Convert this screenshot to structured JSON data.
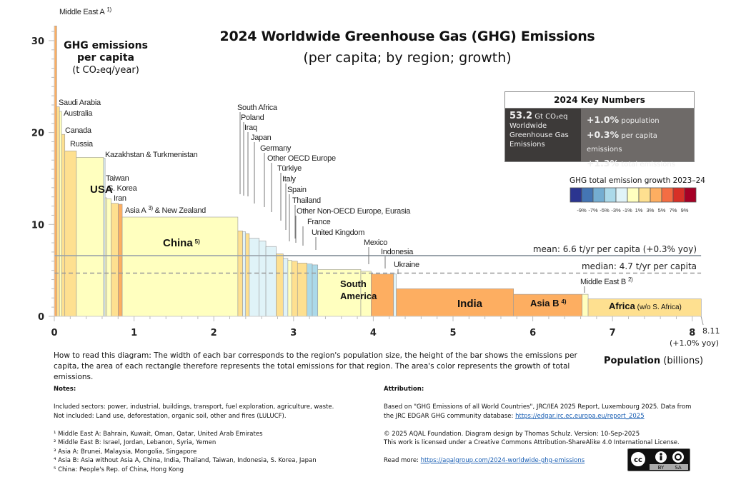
{
  "title": "2024 Worldwide Greenhouse Gas (GHG) Emissions",
  "subtitle": "(per capita; by region; growth)",
  "key_numbers": {
    "header": "2024 Key Numbers",
    "total_value": "53.2",
    "total_unit": "Gt CO₂eq",
    "total_desc": "Worldwide Greenhouse Gas Emissions",
    "items": [
      {
        "value": "+1.0%",
        "label": "population"
      },
      {
        "value": "+0.3%",
        "label": "per capita emissions"
      },
      {
        "value": "+1.3%",
        "label": "total emissions"
      }
    ]
  },
  "legend": {
    "title": "GHG total emission growth 2023–24",
    "colors": [
      "#2b3590",
      "#4475b4",
      "#74add1",
      "#abd9e9",
      "#e0f3f8",
      "#ffffbf",
      "#fee090",
      "#fdae61",
      "#f46d43",
      "#d73027",
      "#a50026"
    ],
    "labels": [
      "-9%",
      "-7%",
      "-5%",
      "-3%",
      "-1%",
      "1%",
      "3%",
      "5%",
      "7%",
      "9%"
    ]
  },
  "chart_data": {
    "type": "bar",
    "variant": "variable-width (Marimekko)",
    "title": "2024 Worldwide Greenhouse Gas (GHG) Emissions",
    "ylabel_bold": "GHG emissions per capita",
    "ylabel_unit": "(t CO₂eq/year)",
    "xlabel_bold": "Population",
    "xlabel_unit": "(billions)",
    "xlim": [
      0,
      8.11
    ],
    "ylim": [
      0,
      31.6
    ],
    "xticks": [
      "0",
      "1",
      "2",
      "3",
      "4",
      "5",
      "6",
      "7",
      "8"
    ],
    "yticks": [
      "0",
      "10",
      "20",
      "30"
    ],
    "x_end_label": "8.11",
    "x_end_note": "(+1.0% yoy)",
    "mean": {
      "value": 6.6,
      "label": "mean: 6.6 t/yr per capita (+0.3% yoy)"
    },
    "median": {
      "value": 4.7,
      "label": "median: 4.7 t/yr per capita"
    },
    "regions": [
      {
        "name": "Middle East A",
        "sup": "1)",
        "population": 0.03,
        "per_capita": 31.6,
        "color": "#fdae61"
      },
      {
        "name": "Saudi Arabia",
        "population": 0.035,
        "per_capita": 22.8,
        "color": "#fee090"
      },
      {
        "name": "Australia",
        "population": 0.027,
        "per_capita": 22.3,
        "color": "#ffffbf"
      },
      {
        "name": "Canada",
        "population": 0.04,
        "per_capita": 19.8,
        "color": "#fee090"
      },
      {
        "name": "Russia",
        "population": 0.145,
        "per_capita": 18.0,
        "color": "#fee090"
      },
      {
        "name": "USA",
        "population": 0.34,
        "per_capita": 17.3,
        "color": "#ffffbf"
      },
      {
        "name": "Kazakhstan & Turkmenistan",
        "population": 0.02,
        "per_capita": 17.2,
        "color": "#e0f3f8"
      },
      {
        "name": "Taiwan",
        "population": 0.023,
        "per_capita": 12.9,
        "color": "#ffffbf"
      },
      {
        "name": "S. Korea",
        "population": 0.052,
        "per_capita": 12.8,
        "color": "#ffffbf"
      },
      {
        "name": "Iran",
        "population": 0.09,
        "per_capita": 12.3,
        "color": "#fee090"
      },
      {
        "name": "Asia A",
        "sup": "3)",
        "suffix": " & New Zealand",
        "population": 0.05,
        "per_capita": 12.2,
        "color": "#fdae61"
      },
      {
        "name": "China",
        "sup": "5)",
        "population": 1.45,
        "per_capita": 10.8,
        "color": "#ffffbf"
      },
      {
        "name": "South Africa",
        "population": 0.06,
        "per_capita": 9.3,
        "color": "#fee090"
      },
      {
        "name": "Poland",
        "population": 0.037,
        "per_capita": 9.2,
        "color": "#e0f3f8"
      },
      {
        "name": "Iraq",
        "population": 0.046,
        "per_capita": 9.0,
        "color": "#fee090"
      },
      {
        "name": "Japan",
        "population": 0.124,
        "per_capita": 8.5,
        "color": "#e0f3f8"
      },
      {
        "name": "Germany",
        "population": 0.084,
        "per_capita": 8.2,
        "color": "#e0f3f8"
      },
      {
        "name": "Other OECD Europe",
        "population": 0.13,
        "per_capita": 7.6,
        "color": "#e0f3f8"
      },
      {
        "name": "Türkiye",
        "population": 0.087,
        "per_capita": 6.8,
        "color": "#fee090"
      },
      {
        "name": "Italy",
        "population": 0.059,
        "per_capita": 6.3,
        "color": "#e0f3f8"
      },
      {
        "name": "Spain",
        "population": 0.048,
        "per_capita": 6.1,
        "color": "#ffffbf"
      },
      {
        "name": "Thailand",
        "population": 0.072,
        "per_capita": 6.0,
        "color": "#fee090"
      },
      {
        "name": "Other Non-OECD Europe, Eurasia",
        "population": 0.12,
        "per_capita": 5.8,
        "color": "#fee090"
      },
      {
        "name": "France",
        "population": 0.066,
        "per_capita": 5.7,
        "color": "#abd9e9"
      },
      {
        "name": "United Kingdom",
        "population": 0.069,
        "per_capita": 5.6,
        "color": "#abd9e9"
      },
      {
        "name": "South America",
        "population": 0.54,
        "per_capita": 5.1,
        "color": "#ffffbf"
      },
      {
        "name": "Mexico",
        "population": 0.13,
        "per_capita": 4.9,
        "color": "#ffffbf"
      },
      {
        "name": "Indonesia",
        "population": 0.28,
        "per_capita": 4.6,
        "color": "#fdae61"
      },
      {
        "name": "Ukraine",
        "population": 0.035,
        "per_capita": 4.6,
        "color": "#e0f3f8"
      },
      {
        "name": "India",
        "population": 1.47,
        "per_capita": 3.0,
        "color": "#fdae61"
      },
      {
        "name": "Asia B",
        "sup": "4)",
        "population": 0.86,
        "per_capita": 2.4,
        "color": "#fdae61"
      },
      {
        "name": "Middle East B",
        "sup": "2)",
        "population": 0.075,
        "per_capita": 2.4,
        "color": "#ffffbf"
      },
      {
        "name": "Africa",
        "suffix": " (w/o S. Africa)",
        "population": 1.418,
        "per_capita": 1.9,
        "color": "#fee090"
      }
    ]
  },
  "how_to_read": "How to read this diagram: The width of each bar corresponds to the region's population size, the height of the bar shows the emissions per capita, the area of each rectangle therefore represents the total emissions for that region. The area's color represents the growth of total emissions.",
  "notes": {
    "title": "Notes:",
    "included": "Included sectors: power, industrial, buildings, transport, fuel exploration, agriculture, waste.",
    "excluded": "Not included: Land use, deforestation, organic soil, other and fires (LULUCF).",
    "footnotes": [
      "¹ Middle East A: Bahrain, Kuwait, Oman, Qatar, United Arab Emirates",
      "² Middle East B: Israel, Jordan, Lebanon, Syria, Yemen",
      "³ Asia A: Brunei, Malaysia, Mongolia, Singapore",
      "⁴ Asia B: Asia without Asia A, China, India, Thailand, Taiwan, Indonesia, S. Korea, Japan",
      "⁵ China: People's Rep. of China, Hong Kong"
    ]
  },
  "attribution": {
    "title": "Attribution:",
    "source": "Based on \"GHG Emissions of all World Countries\", JRC/IEA 2025 Report, Luxembourg 2025. Data from the JRC EDGAR GHG community database:",
    "source_link": "https://edgar.jrc.ec.europa.eu/report_2025",
    "copyright": "© 2025 AQAL Foundation. Diagram design by Thomas Schulz. Version: 10-Sep-2025",
    "license": "This work is licensed under a Creative Commons Attribution-ShareAlike 4.0 International License.",
    "read_more": "Read more:",
    "read_more_link": "https://aqalgroup.com/2024-worldwide-ghg-emissions",
    "cc_badge": [
      "cc",
      "BY",
      "SA"
    ]
  }
}
